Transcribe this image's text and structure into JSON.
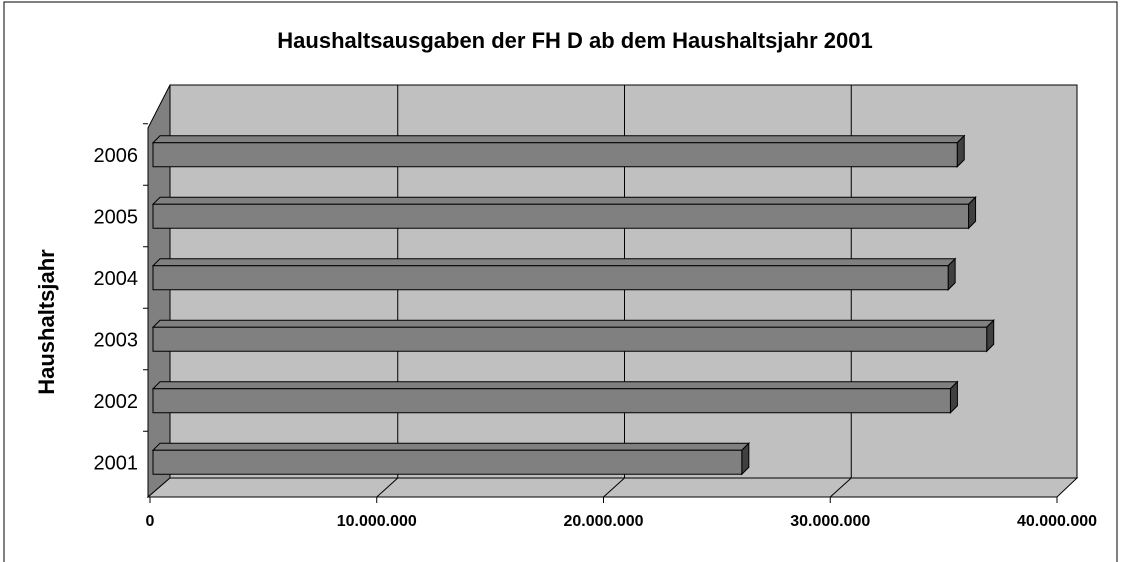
{
  "chart_data": {
    "type": "bar",
    "orientation": "horizontal",
    "title": "Haushaltsausgaben der FH D ab dem Haushaltsjahr 2001",
    "y_label": "Haushaltsjahr",
    "categories": [
      "2001",
      "2002",
      "2003",
      "2004",
      "2005",
      "2006"
    ],
    "values": [
      26100000,
      35300000,
      36900000,
      35200000,
      36100000,
      35600000
    ],
    "color": "#808080",
    "xlim": [
      0,
      40000000
    ],
    "xticks": [
      0,
      {
        "value": 10000000,
        "label": "10.000.000"
      },
      {
        "value": 20000000,
        "label": "20.000.000"
      },
      {
        "value": 30000000,
        "label": "30.000.000"
      },
      {
        "value": 40000000,
        "label": "40.000.000"
      }
    ],
    "grid": true
  }
}
